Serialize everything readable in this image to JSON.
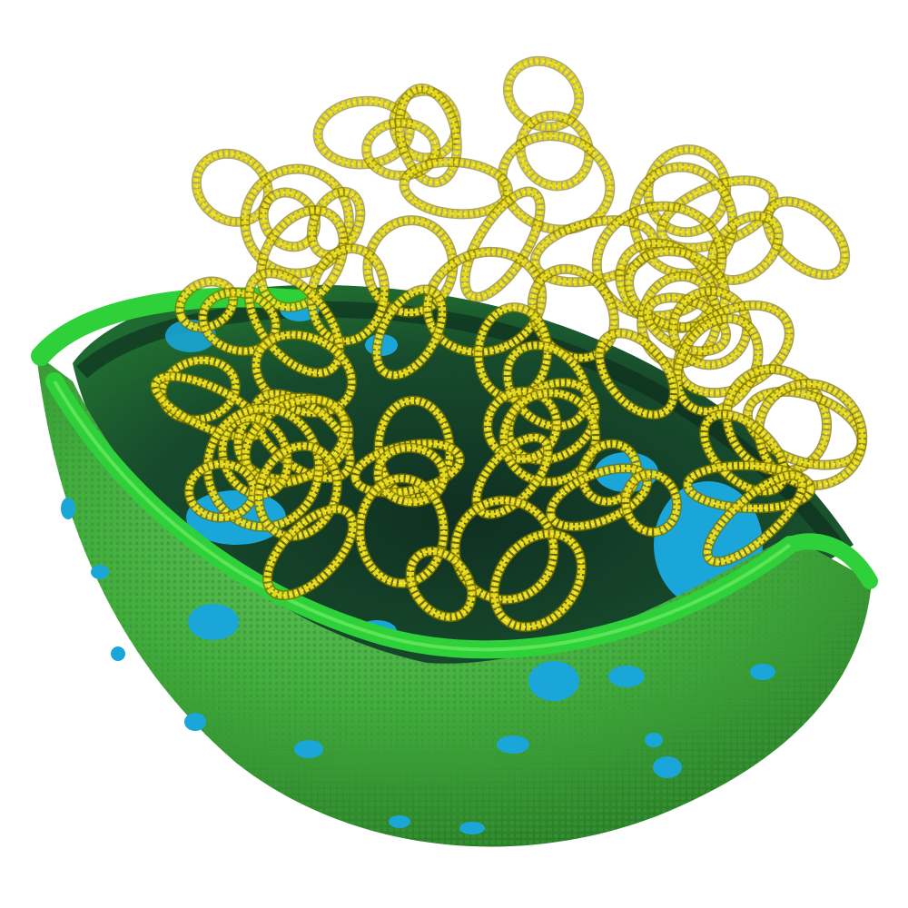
{
  "scene": {
    "background": "#ffffff",
    "colors": {
      "dna_strand": "#e3d81a",
      "dna_highlight": "#f7ef4a",
      "dna_shadow": "#7a6f00",
      "membrane_outer": "#3fae3a",
      "membrane_rim": "#2fd13a",
      "membrane_inner": "#1c6b2a",
      "protein_patch": "#1aa6d9",
      "cavity_dark": "#123a2a"
    },
    "elements": [
      "hemispherical-membrane-shell",
      "membrane-rim",
      "inner-cavity",
      "protein-patches",
      "coiled-dna-strands"
    ]
  }
}
